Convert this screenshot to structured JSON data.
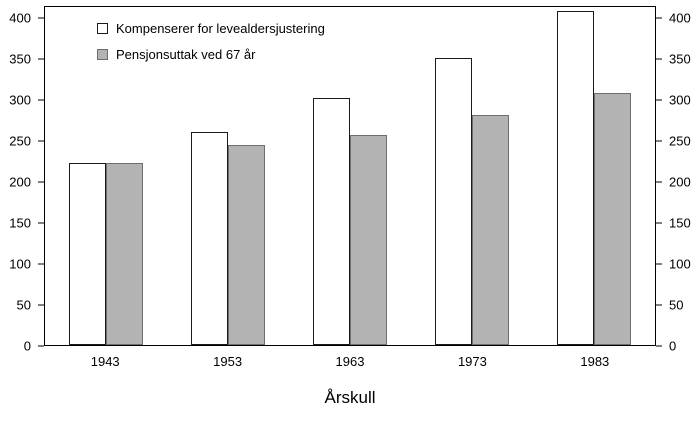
{
  "chart_data": {
    "type": "bar",
    "title": "",
    "categories": [
      "1943",
      "1953",
      "1963",
      "1973",
      "1983"
    ],
    "series": [
      {
        "name": "Kompenserer for levealdersjustering",
        "values": [
          224,
          261,
          303,
          352,
          410
        ],
        "fill": "#ffffff",
        "border": "#1a1a1a"
      },
      {
        "name": "Pensjonsuttak ved 67 år",
        "values": [
          224,
          246,
          258,
          283,
          309
        ],
        "fill": "#b3b3b3",
        "border": "#6e6e6e"
      }
    ],
    "xlabel": "Årskull",
    "ylabel": "",
    "ylim": [
      0,
      415
    ],
    "yticks": [
      0,
      50,
      100,
      150,
      200,
      250,
      300,
      350,
      400
    ],
    "grid": false,
    "legend_position": "top-left-inside",
    "axis_color": "#000000",
    "background": "#ffffff"
  }
}
